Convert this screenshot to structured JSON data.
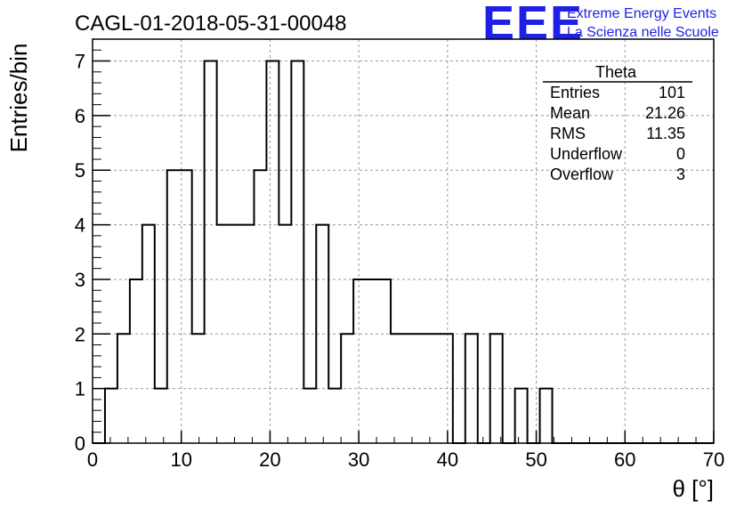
{
  "header": {
    "title": "CAGL-01-2018-05-31-00048",
    "logo": "EEE",
    "logo_line1": "Extreme Energy Events",
    "logo_line2": "La Scienza nelle Scuole",
    "logo_color": "#1f1fe6"
  },
  "stats": {
    "name": "Theta",
    "rows": [
      {
        "label": "Entries",
        "value": "101"
      },
      {
        "label": "Mean",
        "value": "21.26"
      },
      {
        "label": "RMS",
        "value": "11.35"
      },
      {
        "label": "Underflow",
        "value": "0"
      },
      {
        "label": "Overflow",
        "value": "3"
      }
    ]
  },
  "chart_data": {
    "type": "histogram",
    "xlabel": "θ [°]",
    "ylabel": "Entries/bin",
    "xlim": [
      0,
      70
    ],
    "ylim": [
      0,
      7.4
    ],
    "grid": true,
    "bin_width": 1.4,
    "bin_start": 0,
    "x_ticks": [
      0,
      10,
      20,
      30,
      40,
      50,
      60,
      70
    ],
    "y_ticks": [
      0,
      1,
      2,
      3,
      4,
      5,
      6,
      7
    ],
    "values": [
      0,
      1,
      2,
      3,
      4,
      1,
      5,
      5,
      2,
      7,
      4,
      4,
      4,
      5,
      7,
      4,
      7,
      1,
      4,
      1,
      2,
      3,
      3,
      3,
      2,
      2,
      2,
      2,
      2,
      0,
      2,
      0,
      2,
      0,
      1,
      0,
      1,
      0,
      0,
      0,
      0,
      0,
      0,
      0,
      0,
      0,
      0,
      0,
      0,
      0
    ]
  }
}
